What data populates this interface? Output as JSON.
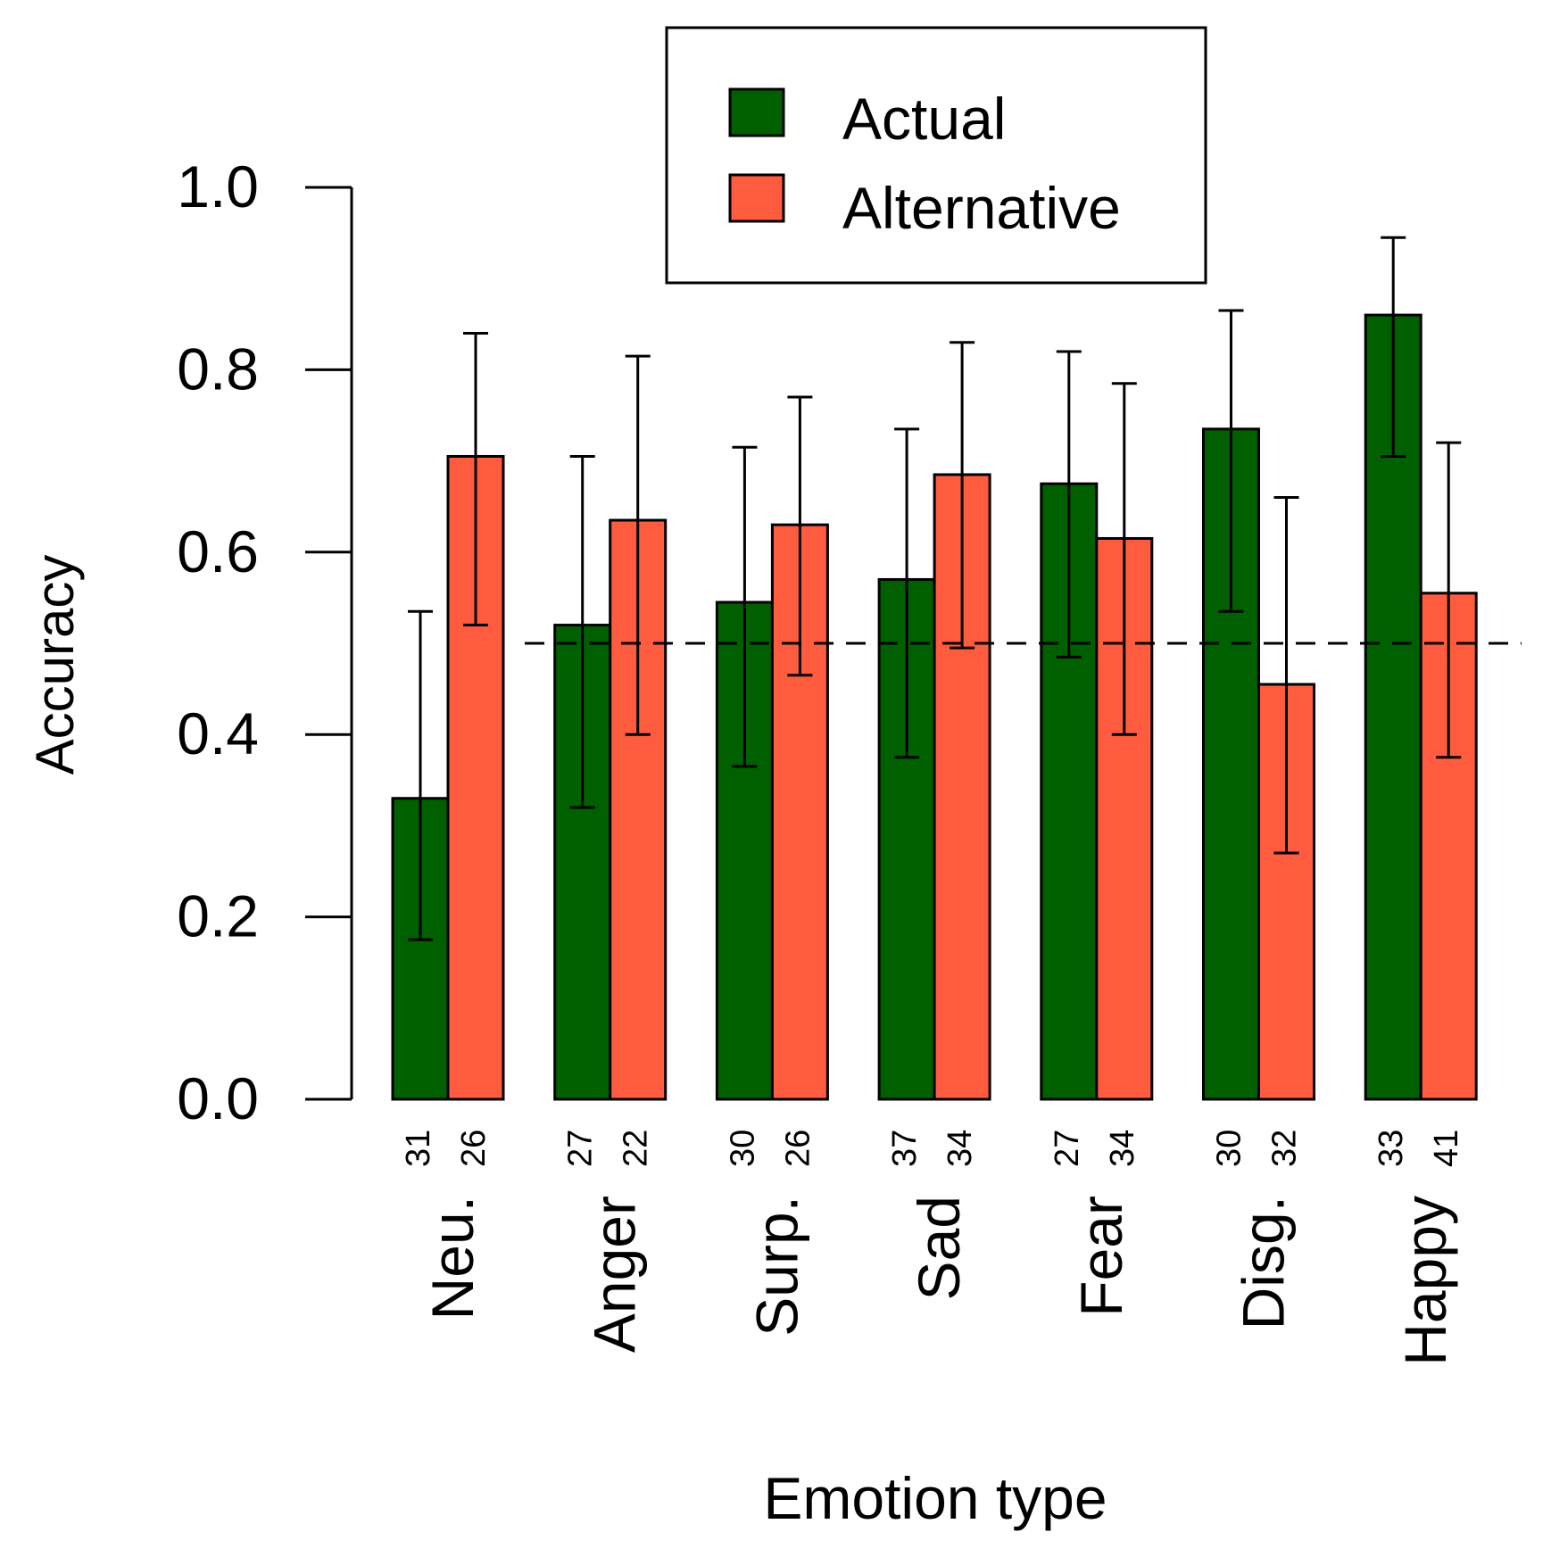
{
  "chart_data": {
    "type": "bar",
    "title": "",
    "xlabel": "Emotion type",
    "ylabel": "Accuracy",
    "ylim": [
      0,
      1
    ],
    "yticks": [
      0,
      0.2,
      0.4,
      0.6,
      0.8,
      1.0
    ],
    "ytick_labels": [
      "0.0",
      "0.2",
      "0.4",
      "0.6",
      "0.8",
      "1.0"
    ],
    "reference_line": 0.5,
    "legend_position": "top-right",
    "categories": [
      "Neu.",
      "Anger",
      "Surp.",
      "Sad",
      "Fear",
      "Disg.",
      "Happy"
    ],
    "series": [
      {
        "name": "Actual",
        "color": "#006000",
        "values": [
          0.33,
          0.52,
          0.545,
          0.57,
          0.675,
          0.735,
          0.86
        ],
        "ci_low": [
          0.175,
          0.32,
          0.365,
          0.375,
          0.485,
          0.535,
          0.705
        ],
        "ci_high": [
          0.535,
          0.705,
          0.715,
          0.735,
          0.82,
          0.865,
          0.945
        ],
        "n": [
          "31",
          "27",
          "30",
          "37",
          "27",
          "30",
          "33"
        ]
      },
      {
        "name": "Alternative",
        "color": "#ff5c3f",
        "values": [
          0.705,
          0.635,
          0.63,
          0.685,
          0.615,
          0.455,
          0.555
        ],
        "ci_low": [
          0.52,
          0.4,
          0.465,
          0.495,
          0.4,
          0.27,
          0.375
        ],
        "ci_high": [
          0.84,
          0.815,
          0.77,
          0.83,
          0.785,
          0.66,
          0.72
        ],
        "n": [
          "26",
          "22",
          "26",
          "34",
          "34",
          "32",
          "41"
        ]
      }
    ]
  }
}
